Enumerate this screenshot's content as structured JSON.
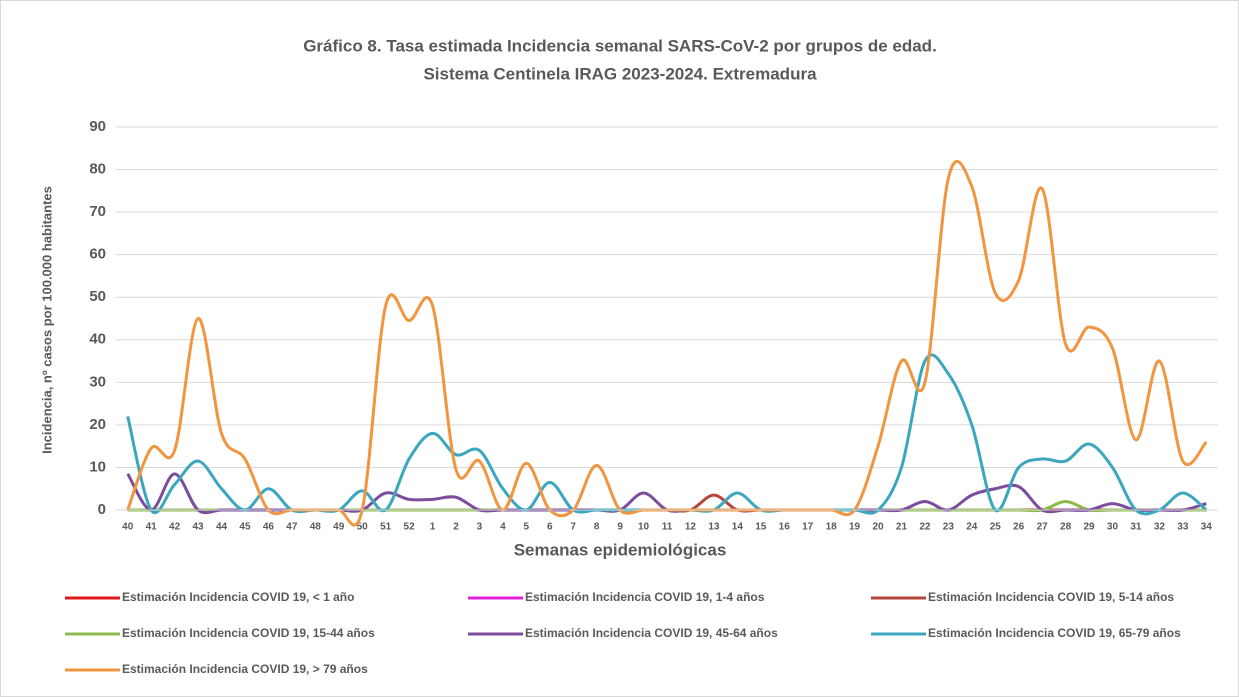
{
  "chart_data": {
    "type": "line",
    "title": "Gráfico 8. Tasa estimada Incidencia semanal SARS-CoV-2 por grupos de edad.",
    "subtitle": "Sistema Centinela IRAG 2023-2024. Extremadura",
    "x_label": "Semanas epidemiológicas",
    "y_label": "Incidencia, nº casos por 100.000 habitantes",
    "categories": [
      "40",
      "41",
      "42",
      "43",
      "44",
      "45",
      "46",
      "47",
      "48",
      "49",
      "50",
      "51",
      "52",
      "1",
      "2",
      "3",
      "4",
      "5",
      "6",
      "7",
      "8",
      "9",
      "10",
      "11",
      "12",
      "13",
      "14",
      "15",
      "16",
      "17",
      "18",
      "19",
      "20",
      "21",
      "22",
      "23",
      "24",
      "25",
      "26",
      "27",
      "28",
      "29",
      "30",
      "31",
      "32",
      "33",
      "34"
    ],
    "ylim": [
      0,
      90
    ],
    "yticks": [
      0,
      10,
      20,
      30,
      40,
      50,
      60,
      70,
      80,
      90
    ],
    "grid": true,
    "smooth": true,
    "legend": "bottom",
    "series": [
      {
        "name": "Estimación Incidencia COVID 19, < 1 año",
        "color": "#e0191f",
        "values": [
          0,
          0,
          0,
          0,
          0,
          0,
          0,
          0,
          0,
          0,
          0,
          0,
          0,
          0,
          0,
          0,
          0,
          0,
          0,
          0,
          0,
          0,
          0,
          0,
          0,
          0,
          0,
          0,
          0,
          0,
          0,
          0,
          0,
          0,
          0,
          0,
          0,
          0,
          0,
          0,
          0,
          0,
          0,
          0,
          0,
          0,
          0
        ]
      },
      {
        "name": "Estimación Incidencia COVID 19, 1-4 años",
        "color": "#e41fe0",
        "values": [
          0,
          0,
          0,
          0,
          0,
          0,
          0,
          0,
          0,
          0,
          0,
          0,
          0,
          0,
          0,
          0,
          0,
          0,
          0,
          0,
          0,
          0,
          0,
          0,
          0,
          0,
          0,
          0,
          0,
          0,
          0,
          0,
          0,
          0,
          0,
          0,
          0,
          0,
          0,
          0,
          0,
          0,
          0,
          0,
          0,
          0,
          0
        ]
      },
      {
        "name": "Estimación Incidencia COVID 19, 5-14 años",
        "color": "#b6463c",
        "values": [
          0,
          0,
          0,
          0,
          0,
          0,
          0,
          0,
          0,
          0,
          0,
          0,
          0,
          0,
          0,
          0,
          0,
          0,
          0,
          0,
          0,
          0,
          0,
          0,
          0,
          3.5,
          0,
          0,
          0,
          0,
          0,
          0,
          0,
          0,
          0,
          0,
          0,
          0,
          0,
          0,
          0,
          0,
          0,
          0,
          0,
          0,
          0
        ]
      },
      {
        "name": "Estimación Incidencia COVID 19, 15-44 años",
        "color": "#8dbb4b",
        "values": [
          0,
          0,
          0,
          0,
          0,
          0,
          0,
          0,
          0,
          0,
          0,
          0,
          0,
          0,
          0,
          0,
          0,
          0,
          0,
          0,
          0,
          0,
          0,
          0,
          0,
          0,
          0,
          0,
          0,
          0,
          0,
          0,
          0,
          0,
          0,
          0,
          0,
          0,
          0,
          0,
          2,
          0,
          0,
          0,
          0,
          0,
          0
        ]
      },
      {
        "name": "Estimación Incidencia COVID 19, 45-64 años",
        "color": "#7b4d9c",
        "values": [
          8.5,
          0,
          8.5,
          0,
          0,
          0,
          0,
          0,
          0,
          0,
          0,
          4,
          2.5,
          2.5,
          3,
          0,
          0,
          0,
          0,
          0,
          0,
          0,
          4,
          0,
          0,
          0,
          0,
          0,
          0,
          0,
          0,
          0,
          0,
          0,
          2,
          0,
          3.5,
          5,
          5.5,
          0,
          0,
          0,
          1.5,
          0,
          0,
          0,
          1.5
        ]
      },
      {
        "name": "Estimación Incidencia COVID 19, 65-79 años",
        "color": "#3ba6bf",
        "values": [
          22,
          0,
          6,
          11.5,
          5,
          0,
          5,
          0,
          0,
          0,
          4.5,
          0,
          12,
          18,
          13,
          14,
          5,
          0,
          6.5,
          0,
          0,
          0,
          0,
          0,
          0,
          0,
          4,
          0,
          0,
          0,
          0,
          0,
          0,
          10,
          35,
          32,
          20,
          0,
          10,
          12,
          11.5,
          15.5,
          10,
          0,
          0,
          4,
          0
        ]
      },
      {
        "name": "Estimación Incidencia COVID 19, > 79 años",
        "color": "#f1953f",
        "values": [
          0,
          14.5,
          14,
          45,
          18,
          12,
          0,
          0,
          0,
          0,
          0,
          48,
          44.5,
          48,
          9.5,
          11.5,
          0,
          11,
          0,
          0,
          10.5,
          0,
          0,
          0,
          0,
          0,
          0,
          0,
          0,
          0,
          0,
          0,
          15,
          35,
          30,
          78,
          76,
          51,
          54,
          75.5,
          39,
          43,
          38,
          16.5,
          35,
          11.5,
          16
        ]
      }
    ]
  }
}
